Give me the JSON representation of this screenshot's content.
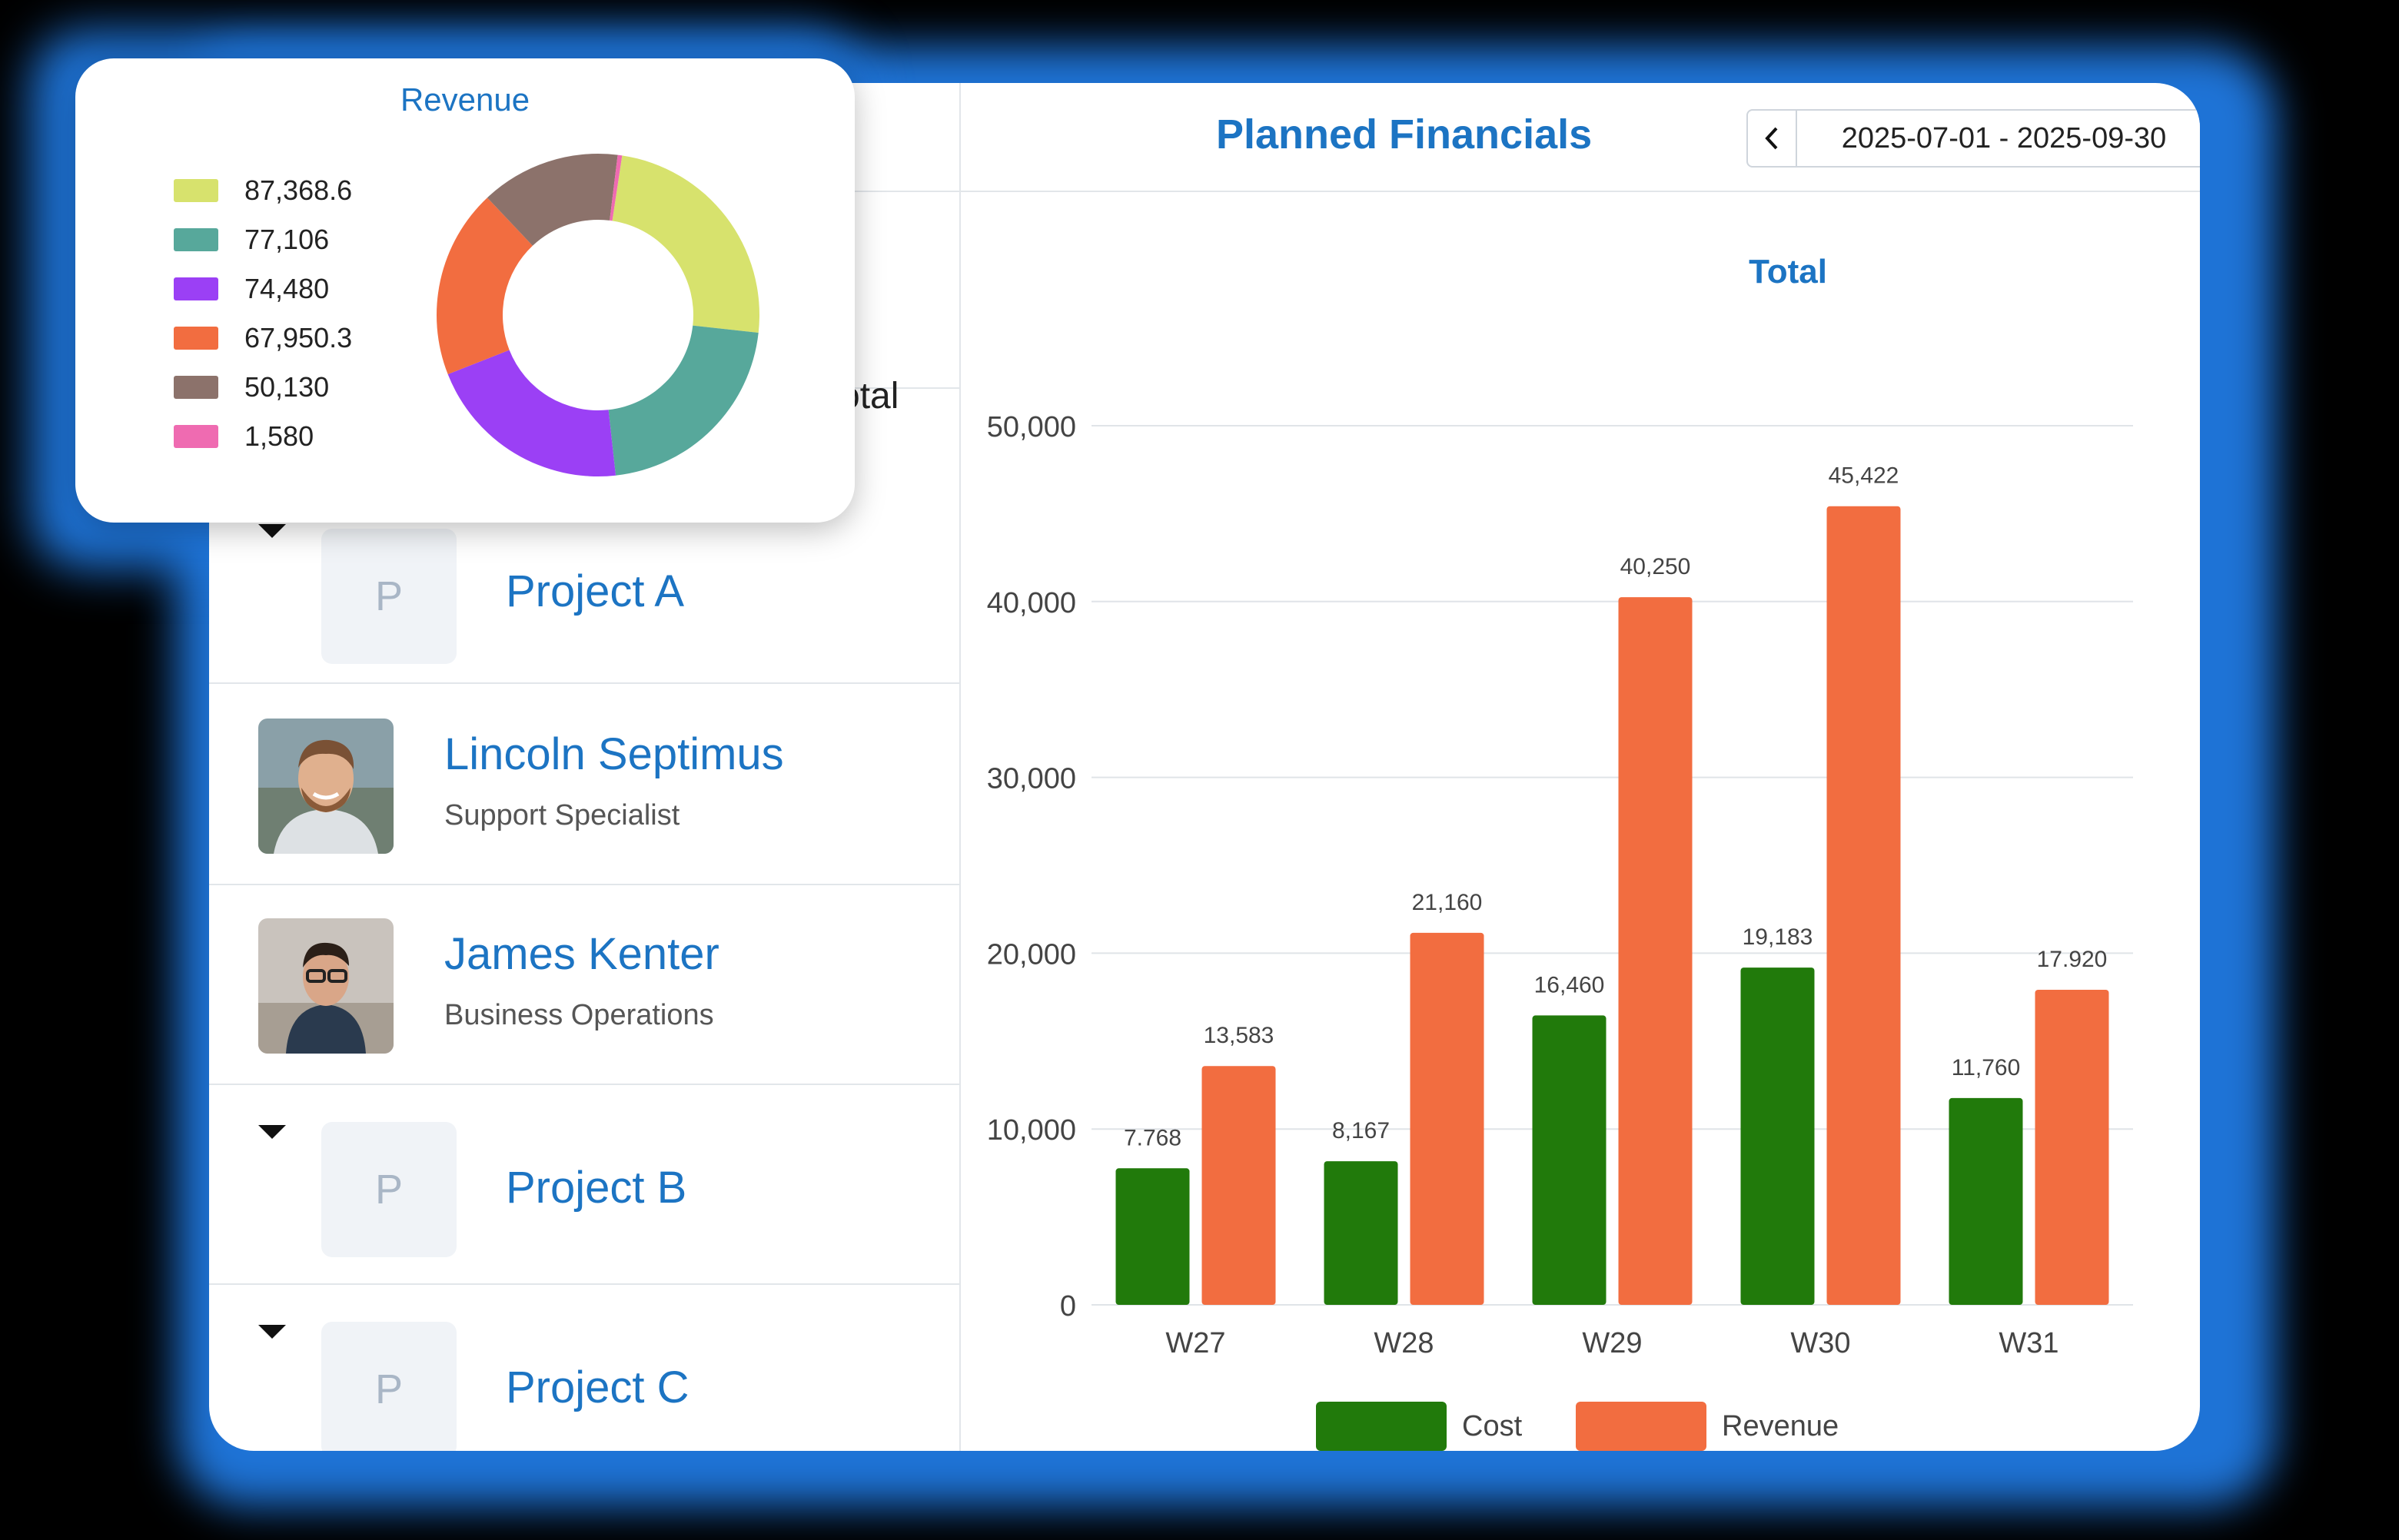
{
  "left_panel": {
    "total_fragment": "otal",
    "rows": [
      {
        "type": "project",
        "name": "Project A",
        "initial": "P"
      },
      {
        "type": "person",
        "name": "Lincoln Septimus",
        "role": "Support Specialist"
      },
      {
        "type": "person",
        "name": "James Kenter",
        "role": "Business Operations"
      },
      {
        "type": "project",
        "name": "Project B",
        "initial": "P"
      },
      {
        "type": "project",
        "name": "Project C",
        "initial": "P"
      }
    ]
  },
  "header": {
    "title": "Planned Financials",
    "date_range": "2025-07-01 - 2025-09-30",
    "prev_icon": "chevron-left-icon",
    "next_icon": "chevron-right-icon",
    "calendar_icon": "calendar-icon"
  },
  "colors": {
    "cost": "#217a0b",
    "revenue": "#f26d40",
    "accent": "#1c74c3"
  },
  "chart_data": [
    {
      "type": "bar",
      "title": "Total",
      "categories": [
        "W27",
        "W28",
        "W29",
        "W30",
        "W31"
      ],
      "series": [
        {
          "name": "Cost",
          "values": [
            7768,
            8167,
            16460,
            19183,
            11760
          ],
          "labels": [
            "7.768",
            "8,167",
            "16,460",
            "19,183",
            "11,760"
          ]
        },
        {
          "name": "Revenue",
          "values": [
            13583,
            21160,
            40250,
            45422,
            17920
          ],
          "labels": [
            "13,583",
            "21,160",
            "40,250",
            "45,422",
            "17.920"
          ]
        }
      ],
      "yticks": [
        "0",
        "10,000",
        "20,000",
        "30,000",
        "40,000",
        "50,000"
      ],
      "ylim": [
        0,
        50000
      ],
      "legend": "bottom",
      "grid": true
    },
    {
      "type": "pie",
      "title": "Revenue",
      "donut": true,
      "slices": [
        {
          "label": "87,368.6",
          "value": 87368.6,
          "color": "#d7e26d"
        },
        {
          "label": "77,106",
          "value": 77106,
          "color": "#57a89b"
        },
        {
          "label": "74,480",
          "value": 74480,
          "color": "#9b40f5"
        },
        {
          "label": "67,950.3",
          "value": 67950.3,
          "color": "#f26d40"
        },
        {
          "label": "50,130",
          "value": 50130,
          "color": "#8c726b"
        },
        {
          "label": "1,580",
          "value": 1580,
          "color": "#ef6bb1"
        }
      ],
      "legend": "left"
    }
  ]
}
